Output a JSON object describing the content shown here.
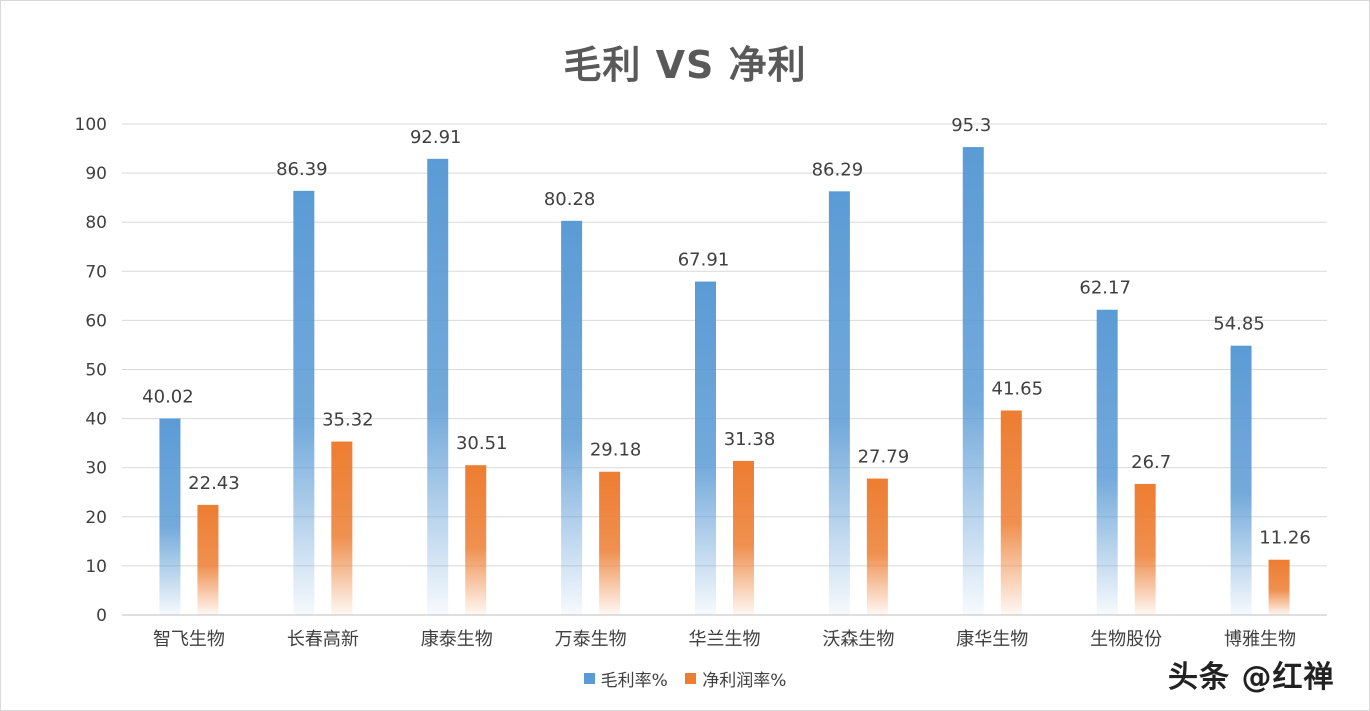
{
  "chart_data": {
    "type": "bar",
    "title": "毛利 VS 净利",
    "categories": [
      "智飞生物",
      "长春高新",
      "康泰生物",
      "万泰生物",
      "华兰生物",
      "沃森生物",
      "康华生物",
      "生物股份",
      "博雅生物"
    ],
    "series": [
      {
        "name": "毛利率%",
        "color": "#5b9bd5",
        "values": [
          40.02,
          86.39,
          92.91,
          80.28,
          67.91,
          86.29,
          95.3,
          62.17,
          54.85
        ]
      },
      {
        "name": "净利润率%",
        "color": "#ed7d31",
        "values": [
          22.43,
          35.32,
          30.51,
          29.18,
          31.38,
          27.79,
          41.65,
          26.7,
          11.26
        ]
      }
    ],
    "data_labels": [
      [
        "40.02",
        "86.39",
        "92.91",
        "80.28",
        "67.91",
        "86.29",
        "95.3",
        "62.17",
        "54.85"
      ],
      [
        "22.43",
        "35.32",
        "30.51",
        "29.18",
        "31.38",
        "27.79",
        "41.65",
        "26.7",
        "11.26"
      ]
    ],
    "ylim": [
      0,
      100
    ],
    "yticks": [
      "0",
      "10",
      "20",
      "30",
      "40",
      "50",
      "60",
      "70",
      "80",
      "90",
      "100"
    ],
    "grid": true,
    "legend_position": "bottom",
    "xlabel": "",
    "ylabel": ""
  },
  "watermark": "头条 @红禅"
}
